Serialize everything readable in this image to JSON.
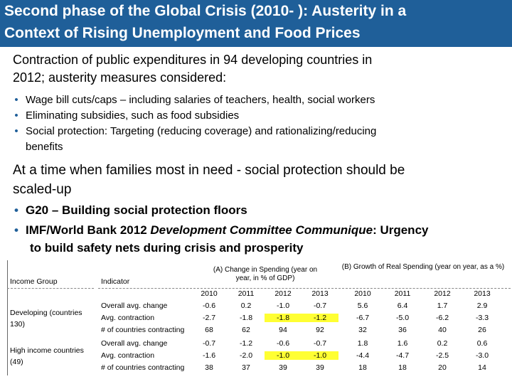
{
  "title": {
    "line1": "Second phase of the Global Crisis (2010- ):  Austerity in a",
    "line2": "Context of Rising Unemployment and Food Prices"
  },
  "intro": {
    "line1": "Contraction of public expenditures in 94 developing countries in",
    "line2": "2012; austerity measures considered:"
  },
  "measures": [
    "Wage bill cuts/caps – including salaries of teachers, health, social workers",
    "Eliminating subsidies, such as food subsidies",
    "Social protection:  Targeting (reducing coverage) and rationalizing/reducing",
    "benefits"
  ],
  "scaleup": {
    "line1": "At a time when families most in need - social protection should be",
    "line2": "scaled-up"
  },
  "actions": {
    "g20": "G20 – Building social protection floors",
    "imf_prefix": "IMF/World Bank 2012 ",
    "imf_italic": "Development Committee Communique",
    "imf_suffix": ": Urgency",
    "imf_line2": "to build safety nets during crisis and prosperity"
  },
  "table": {
    "col_income_group": "Income Group",
    "col_indicator": "Indicator",
    "header_a": "(A) Change in Spending (year on year, in % of GDP)",
    "header_b": "(B) Growth of Real Spending (year on year, as a %)",
    "years_a": [
      "2010",
      "2011",
      "2012",
      "2013"
    ],
    "years_b": [
      "2010",
      "2011",
      "2012",
      "2013"
    ],
    "groups": [
      {
        "name": "Developing (countries 130)",
        "rows": [
          {
            "indicator": "Overall avg. change",
            "a": [
              "-0.6",
              "0.2",
              "-1.0",
              "-0.7"
            ],
            "b": [
              "5.6",
              "6.4",
              "1.7",
              "2.9"
            ],
            "hl": [
              false,
              false,
              false,
              false
            ]
          },
          {
            "indicator": "Avg. contraction",
            "a": [
              "-2.7",
              "-1.8",
              "-1.8",
              "-1.2"
            ],
            "b": [
              "-6.7",
              "-5.0",
              "-6.2",
              "-3.3"
            ],
            "hl": [
              false,
              false,
              true,
              true
            ]
          },
          {
            "indicator": "# of countries contracting",
            "a": [
              "68",
              "62",
              "94",
              "92"
            ],
            "b": [
              "32",
              "36",
              "40",
              "26"
            ],
            "hl": [
              false,
              false,
              false,
              false
            ]
          }
        ]
      },
      {
        "name": "High income countries (49)",
        "rows": [
          {
            "indicator": "Overall avg. change",
            "a": [
              "-0.7",
              "-1.2",
              "-0.6",
              "-0.7"
            ],
            "b": [
              "1.8",
              "1.6",
              "0.2",
              "0.6"
            ],
            "hl": [
              false,
              false,
              false,
              false
            ]
          },
          {
            "indicator": "Avg. contraction",
            "a": [
              "-1.6",
              "-2.0",
              "-1.0",
              "-1.0"
            ],
            "b": [
              "-4.4",
              "-4.7",
              "-2.5",
              "-3.0"
            ],
            "hl": [
              false,
              false,
              true,
              true
            ]
          },
          {
            "indicator": "# of countries contracting",
            "a": [
              "38",
              "37",
              "39",
              "39"
            ],
            "b": [
              "18",
              "18",
              "20",
              "14"
            ],
            "hl": [
              false,
              false,
              false,
              false
            ]
          }
        ]
      }
    ]
  }
}
